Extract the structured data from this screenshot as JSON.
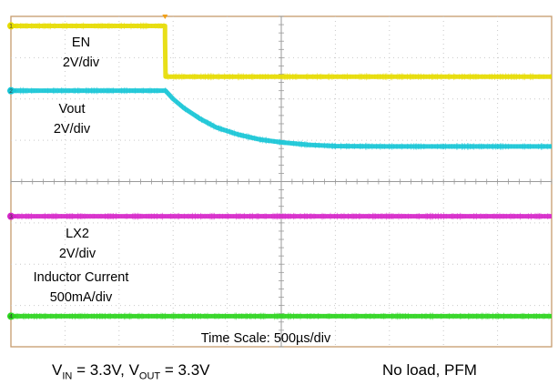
{
  "chart_data": {
    "type": "line",
    "title": "",
    "grid": true,
    "divisions": {
      "x": 10,
      "y": 8
    },
    "time_scale_label": "Time Scale: 500µs/div",
    "trigger_div": 2.85,
    "channels": [
      {
        "id": "1",
        "name": "EN",
        "scale": "2V/div",
        "color": "#e6dc00",
        "points": [
          [
            0,
            7.77
          ],
          [
            2.85,
            7.77
          ],
          [
            2.85,
            7.48
          ],
          [
            2.86,
            6.54
          ],
          [
            10,
            6.54
          ]
        ]
      },
      {
        "id": "2",
        "name": "Vout",
        "scale": "2V/div",
        "color": "#17c5d6",
        "points": [
          [
            0,
            6.2
          ],
          [
            2.86,
            6.2
          ],
          [
            3.0,
            6.0
          ],
          [
            3.2,
            5.78
          ],
          [
            3.5,
            5.52
          ],
          [
            3.8,
            5.31
          ],
          [
            4.2,
            5.14
          ],
          [
            4.6,
            5.02
          ],
          [
            5.0,
            4.95
          ],
          [
            5.5,
            4.89
          ],
          [
            6.0,
            4.86
          ],
          [
            7.0,
            4.85
          ],
          [
            10,
            4.85
          ]
        ]
      },
      {
        "id": "3",
        "name": "LX2",
        "scale": "2V/div",
        "color": "#d626c9",
        "points": [
          [
            0,
            3.16
          ],
          [
            10,
            3.16
          ]
        ]
      },
      {
        "id": "4",
        "name": "Inductor Current",
        "scale": "500mA/div",
        "color": "#2cd41e",
        "points": [
          [
            0,
            0.74
          ],
          [
            10,
            0.74
          ]
        ]
      }
    ]
  },
  "caption": {
    "vin_v": "V",
    "vin_sub": "IN",
    "vin_rest": " = 3.3V, ",
    "vout_v": "V",
    "vout_sub": "OUT",
    "vout_rest": " = 3.3V",
    "condition": "No load, PFM"
  }
}
